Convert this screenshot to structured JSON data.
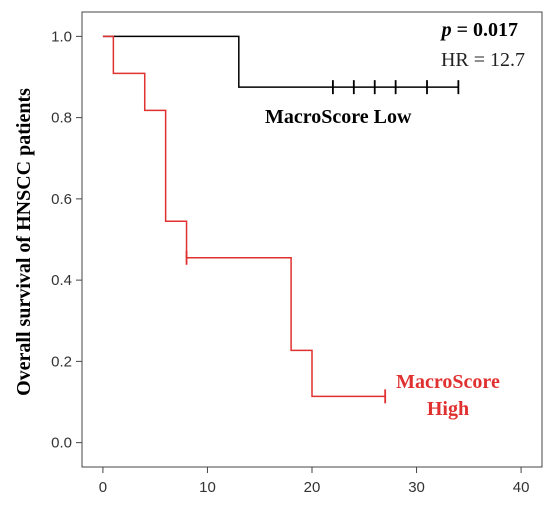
{
  "chart_data": {
    "type": "line",
    "title": "",
    "xlabel": "",
    "ylabel": "Overall survival of HNSCC patients",
    "xlim": [
      -2,
      42
    ],
    "ylim": [
      -0.06,
      1.06
    ],
    "xticks": [
      "0",
      "10",
      "20",
      "30",
      "40"
    ],
    "yticks": [
      "0.0",
      "0.2",
      "0.4",
      "0.6",
      "0.8",
      "1.0"
    ],
    "grid": false,
    "series": [
      {
        "name": "MacroScore Low",
        "color": "#000000",
        "steps": [
          [
            0,
            1.0
          ],
          [
            13,
            0.875
          ],
          [
            34,
            0.875
          ]
        ],
        "censored": [
          [
            22,
            0.875
          ],
          [
            24,
            0.875
          ],
          [
            26,
            0.875
          ],
          [
            28,
            0.875
          ],
          [
            31,
            0.875
          ],
          [
            34,
            0.875
          ]
        ]
      },
      {
        "name": "MacroScore High",
        "color": "#e0302f",
        "steps": [
          [
            0,
            1.0
          ],
          [
            1,
            0.909
          ],
          [
            4,
            0.818
          ],
          [
            6,
            0.545
          ],
          [
            8,
            0.455
          ],
          [
            18,
            0.227
          ],
          [
            20,
            0.114
          ],
          [
            27,
            0.114
          ]
        ],
        "censored": [
          [
            8,
            0.455
          ],
          [
            27,
            0.114
          ]
        ]
      }
    ],
    "annotations": {
      "p_prefix": "p",
      "p_value": " = 0.017",
      "hr": "HR = 12.7",
      "low_label": "MacroScore Low",
      "high_label_line1": "MacroScore",
      "high_label_line2": "High"
    }
  }
}
